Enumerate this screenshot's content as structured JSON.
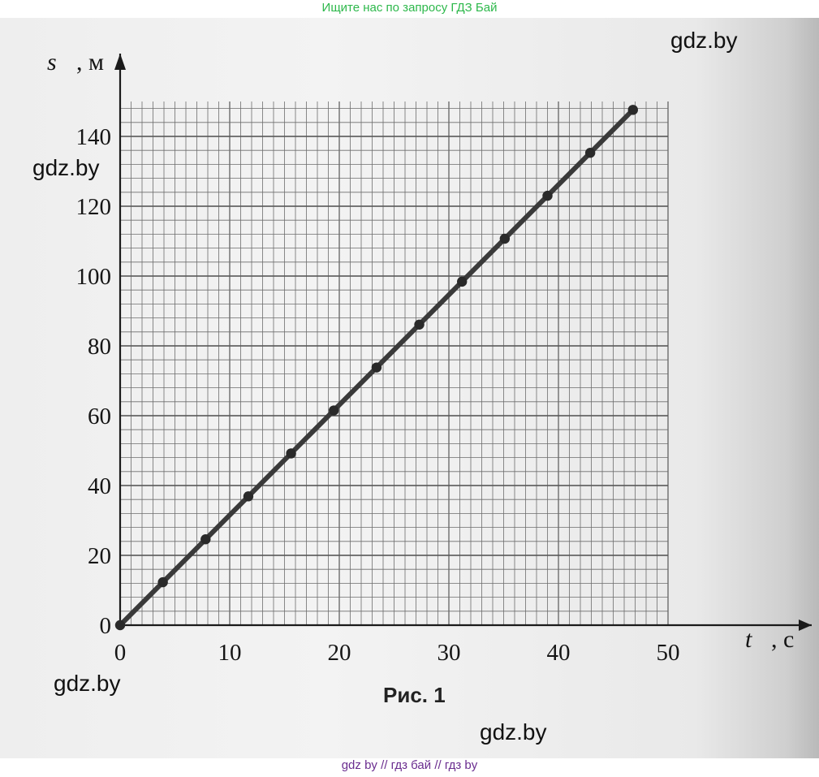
{
  "banner_top": "Ищите нас по запросу ГДЗ Бай",
  "banner_bottom": "gdz by  //  гдз бай  //  гдз by",
  "watermark": "gdz.by",
  "figure_caption": "Рис. 1",
  "colors": {
    "line": "#3a3a3a",
    "grid": "#6d6d6d",
    "banner_top": "#2db84b",
    "banner_bottom": "#6a2d8f"
  },
  "chart_data": {
    "type": "line",
    "xlabel": "t",
    "xunit": "с",
    "ylabel": "s",
    "yunit": "м",
    "xlim": [
      0,
      50
    ],
    "ylim": [
      0,
      150
    ],
    "xticks": [
      0,
      10,
      20,
      30,
      40,
      50
    ],
    "yticks": [
      0,
      20,
      40,
      60,
      80,
      100,
      120,
      140
    ],
    "grid": true,
    "series": [
      {
        "x": [
          0,
          3.9,
          7.8,
          11.7,
          15.6,
          19.5,
          23.4,
          27.3,
          31.2,
          35.1,
          39.0,
          42.9,
          46.8
        ],
        "y": [
          0,
          12.3,
          24.6,
          36.9,
          49.2,
          61.5,
          73.8,
          86.1,
          98.4,
          110.7,
          123.0,
          135.3,
          147.6
        ]
      }
    ]
  }
}
